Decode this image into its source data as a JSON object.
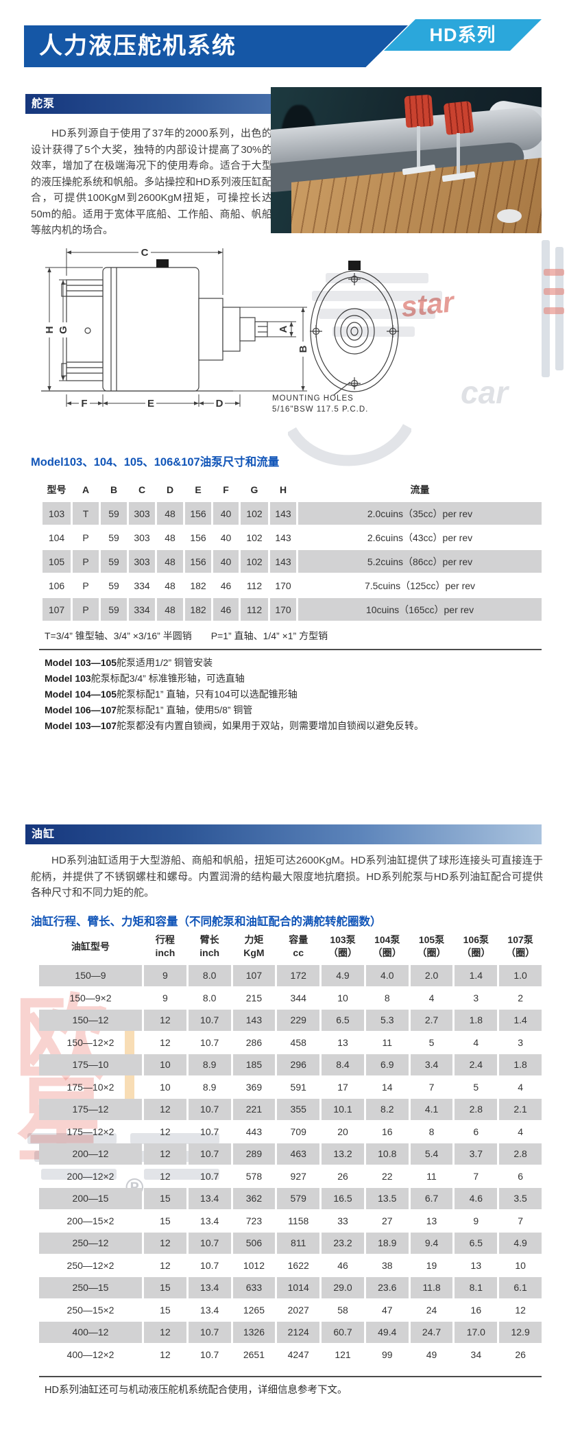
{
  "header": {
    "title": "人力液压舵机系统",
    "badge": "HD系列"
  },
  "pump": {
    "bar": "舵泵",
    "intro": "HD系列源自于使用了37年的2000系列，出色的设计获得了5个大奖，独特的内部设计提高了30%的效率，增加了在极端海况下的使用寿命。适合于大型的液压操舵系统和帆船。多站操控和HD系列液压缸配合，可提供100KgM到2600KgM扭矩，可操控长达50m的船。适用于宽体平底船、工作船、商船、帆船等舷内机的场合。",
    "table_title": "Model103、104、105、106&107油泵尺寸和流量",
    "shaft_note": "T=3/4” 锥型轴、3/4” ×3/16” 半圆销　　P=1” 直轴、1/4” ×1” 方型销",
    "notes": [
      {
        "bold": "Model 103—105",
        "text": "舵泵适用1/2” 铜管安装"
      },
      {
        "bold": "Model 103",
        "text": "舵泵标配3/4” 标准锥形轴，可选直轴"
      },
      {
        "bold": "Model 104—105",
        "text": "舵泵标配1” 直轴，只有104可以选配锥形轴"
      },
      {
        "bold": "Model 106—107",
        "text": "舵泵标配1” 直轴，使用5/8” 铜管"
      },
      {
        "bold": "Model 103—107",
        "text": "舵泵都没有内置自锁阀，如果用于双站，则需要增加自锁阀以避免反转。"
      }
    ]
  },
  "pump_table": {
    "headers": [
      "型号",
      "A",
      "B",
      "C",
      "D",
      "E",
      "F",
      "G",
      "H",
      "流量"
    ],
    "rows": [
      [
        "103",
        "T",
        "59",
        "303",
        "48",
        "156",
        "40",
        "102",
        "143",
        "2.0cuins（35cc）per rev"
      ],
      [
        "104",
        "P",
        "59",
        "303",
        "48",
        "156",
        "40",
        "102",
        "143",
        "2.6cuins（43cc）per rev"
      ],
      [
        "105",
        "P",
        "59",
        "303",
        "48",
        "156",
        "40",
        "102",
        "143",
        "5.2cuins（86cc）per rev"
      ],
      [
        "106",
        "P",
        "59",
        "334",
        "48",
        "182",
        "46",
        "112",
        "170",
        "7.5cuins（125cc）per rev"
      ],
      [
        "107",
        "P",
        "59",
        "334",
        "48",
        "182",
        "46",
        "112",
        "170",
        "10cuins（165cc）per rev"
      ]
    ]
  },
  "cylinder": {
    "bar": "油缸",
    "intro": "HD系列油缸适用于大型游船、商船和帆船，扭矩可达2600KgM。HD系列油缸提供了球形连接头可直接连于舵柄，并提供了不锈钢螺柱和螺母。内置润滑的结构最大限度地抗磨损。HD系列舵泵与HD系列油缸配合可提供各种尺寸和不同力矩的舵。",
    "table_title": "油缸行程、臂长、力矩和容量（不同舵泵和油缸配合的满舵转舵圈数）",
    "footnote": "HD系列油缸还可与机动液压舵机系统配合使用，详细信息参考下文。"
  },
  "cylinder_table": {
    "headers": [
      [
        "油缸型号"
      ],
      [
        "行程",
        "inch"
      ],
      [
        "臂长",
        "inch"
      ],
      [
        "力矩",
        "KgM"
      ],
      [
        "容量",
        "cc"
      ],
      [
        "103泵",
        "（圈）"
      ],
      [
        "104泵",
        "（圈）"
      ],
      [
        "105泵",
        "（圈）"
      ],
      [
        "106泵",
        "（圈）"
      ],
      [
        "107泵",
        "（圈）"
      ]
    ],
    "rows": [
      [
        "150—9",
        "9",
        "8.0",
        "107",
        "172",
        "4.9",
        "4.0",
        "2.0",
        "1.4",
        "1.0"
      ],
      [
        "150—9×2",
        "9",
        "8.0",
        "215",
        "344",
        "10",
        "8",
        "4",
        "3",
        "2"
      ],
      [
        "150—12",
        "12",
        "10.7",
        "143",
        "229",
        "6.5",
        "5.3",
        "2.7",
        "1.8",
        "1.4"
      ],
      [
        "150—12×2",
        "12",
        "10.7",
        "286",
        "458",
        "13",
        "11",
        "5",
        "4",
        "3"
      ],
      [
        "175—10",
        "10",
        "8.9",
        "185",
        "296",
        "8.4",
        "6.9",
        "3.4",
        "2.4",
        "1.8"
      ],
      [
        "175—10×2",
        "10",
        "8.9",
        "369",
        "591",
        "17",
        "14",
        "7",
        "5",
        "4"
      ],
      [
        "175—12",
        "12",
        "10.7",
        "221",
        "355",
        "10.1",
        "8.2",
        "4.1",
        "2.8",
        "2.1"
      ],
      [
        "175—12×2",
        "12",
        "10.7",
        "443",
        "709",
        "20",
        "16",
        "8",
        "6",
        "4"
      ],
      [
        "200—12",
        "12",
        "10.7",
        "289",
        "463",
        "13.2",
        "10.8",
        "5.4",
        "3.7",
        "2.8"
      ],
      [
        "200—12×2",
        "12",
        "10.7",
        "578",
        "927",
        "26",
        "22",
        "11",
        "7",
        "6"
      ],
      [
        "200—15",
        "15",
        "13.4",
        "362",
        "579",
        "16.5",
        "13.5",
        "6.7",
        "4.6",
        "3.5"
      ],
      [
        "200—15×2",
        "15",
        "13.4",
        "723",
        "1158",
        "33",
        "27",
        "13",
        "9",
        "7"
      ],
      [
        "250—12",
        "12",
        "10.7",
        "506",
        "811",
        "23.2",
        "18.9",
        "9.4",
        "6.5",
        "4.9"
      ],
      [
        "250—12×2",
        "12",
        "10.7",
        "1012",
        "1622",
        "46",
        "38",
        "19",
        "13",
        "10"
      ],
      [
        "250—15",
        "15",
        "13.4",
        "633",
        "1014",
        "29.0",
        "23.6",
        "11.8",
        "8.1",
        "6.1"
      ],
      [
        "250—15×2",
        "15",
        "13.4",
        "1265",
        "2027",
        "58",
        "47",
        "24",
        "16",
        "12"
      ],
      [
        "400—12",
        "12",
        "10.7",
        "1326",
        "2124",
        "60.7",
        "49.4",
        "24.7",
        "17.0",
        "12.9"
      ],
      [
        "400—12×2",
        "12",
        "10.7",
        "2651",
        "4247",
        "121",
        "99",
        "49",
        "34",
        "26"
      ]
    ]
  },
  "drawing": {
    "dims": {
      "c": "C",
      "h": "H",
      "g": "G",
      "a": "A",
      "b": "B",
      "f": "F",
      "e": "E",
      "d": "D"
    },
    "mounting_line1": "MOUNTING  HOLES",
    "mounting_line2": "5/16\"BSW  117.5  P.C.D."
  },
  "watermarks": {
    "registered": "®",
    "red_script": "star",
    "gray_script": "car"
  }
}
